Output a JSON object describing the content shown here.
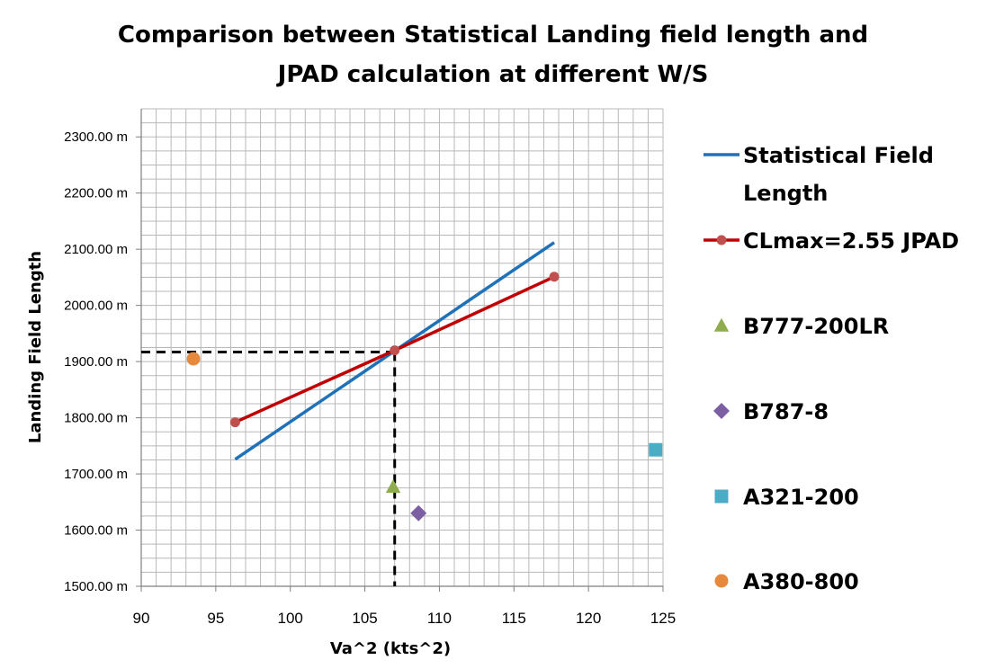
{
  "chart_data": {
    "type": "scatter",
    "title_lines": [
      "Comparison between Statistical Landing field length and",
      "JPAD calculation at different W/S"
    ],
    "xlabel": "Va^2 (kts^2)",
    "ylabel": "Landing Field Length",
    "xlim": [
      90,
      125
    ],
    "ylim": [
      1500,
      2350
    ],
    "x_ticks": [
      90,
      95,
      100,
      105,
      110,
      115,
      120,
      125
    ],
    "x_tick_labels": [
      "90",
      "95",
      "100",
      "105",
      "110",
      "115",
      "120",
      "125"
    ],
    "y_ticks": [
      1500,
      1600,
      1700,
      1800,
      1900,
      2000,
      2100,
      2200,
      2300
    ],
    "y_tick_labels": [
      "1500.00 m",
      "1600.00 m",
      "1700.00 m",
      "1800.00 m",
      "1900.00 m",
      "2000.00 m",
      "2100.00 m",
      "2200.00 m",
      "2300.00 m"
    ],
    "grid": true,
    "legend_position": "right",
    "series": [
      {
        "name": "Statistical Field Length",
        "legend_lines": [
          "Statistical Field",
          "Length"
        ],
        "kind": "line",
        "color": "#1f72b8",
        "marker": "none",
        "x": [
          96.3,
          117.7
        ],
        "y": [
          1726,
          2112
        ]
      },
      {
        "name": "CLmax=2.55 JPAD",
        "legend_lines": [
          "CLmax=2.55 JPAD"
        ],
        "kind": "line",
        "color": "#c00000",
        "marker": "circle",
        "marker_color": "#c0504d",
        "x": [
          96.3,
          107.0,
          117.7
        ],
        "y": [
          1792,
          1920,
          2051
        ]
      },
      {
        "name": "B777-200LR",
        "legend_lines": [
          "B777-200LR"
        ],
        "kind": "point",
        "color": "#8fad4f",
        "marker": "triangle",
        "x": [
          106.9
        ],
        "y": [
          1677
        ]
      },
      {
        "name": "B787-8",
        "legend_lines": [
          "B787-8"
        ],
        "kind": "point",
        "color": "#7c5ea3",
        "marker": "diamond",
        "x": [
          108.6
        ],
        "y": [
          1630
        ]
      },
      {
        "name": "A321-200",
        "legend_lines": [
          "A321-200"
        ],
        "kind": "point",
        "color": "#4bacc6",
        "marker": "square",
        "x": [
          124.5
        ],
        "y": [
          1743
        ]
      },
      {
        "name": "A380-800",
        "legend_lines": [
          "A380-800"
        ],
        "kind": "point",
        "color": "#e6893c",
        "marker": "circle",
        "x": [
          93.5
        ],
        "y": [
          1905
        ]
      }
    ],
    "reference_point": {
      "x": 107.0,
      "y": 1917,
      "style": "dashed",
      "color": "#000000"
    }
  }
}
